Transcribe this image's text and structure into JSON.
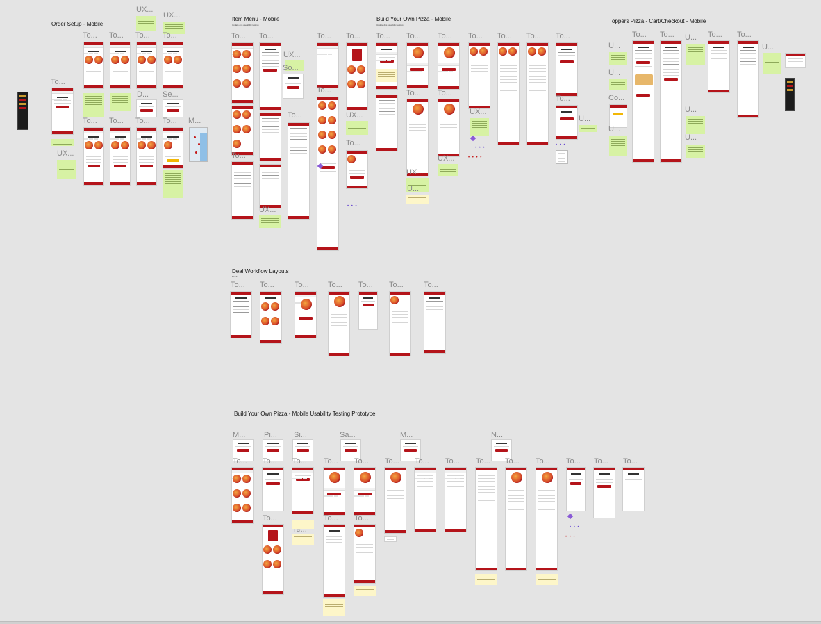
{
  "sections": {
    "order_setup": {
      "title": "Order Setup  - Mobile"
    },
    "item_menu": {
      "title": "Item Menu - Mobile",
      "subtitle": "Update dns useability testing"
    },
    "byo_pizza": {
      "title": "Build Your Own Pizza - Mobile",
      "subtitle": "Update dns useability testing"
    },
    "toppers_cart": {
      "title": "Toppers Pizza - Cart/Checkout - Mobile"
    },
    "deal_workflow": {
      "title": "Deal Workflow Layouts",
      "subtitle": "Mobile"
    },
    "usability": {
      "title": "Build Your Own Pizza - Mobile Usability Testing Prototype"
    }
  },
  "labels": {
    "to": "To...",
    "ux": "UX...",
    "u": "U...",
    "d": "D...",
    "se": "Se...",
    "sa": "Sa...",
    "m": "M...",
    "pi": "Pi...",
    "si": "Si...",
    "n": "N...",
    "te": "Te...",
    "co": "Co...",
    "so": "So..."
  },
  "colors": {
    "canvas": "#e4e4e4",
    "brand_red": "#b4141a",
    "note_green": "#d7f2a4",
    "note_yellow": "#fdf6c9",
    "component_purple": "#8a5ad6"
  }
}
